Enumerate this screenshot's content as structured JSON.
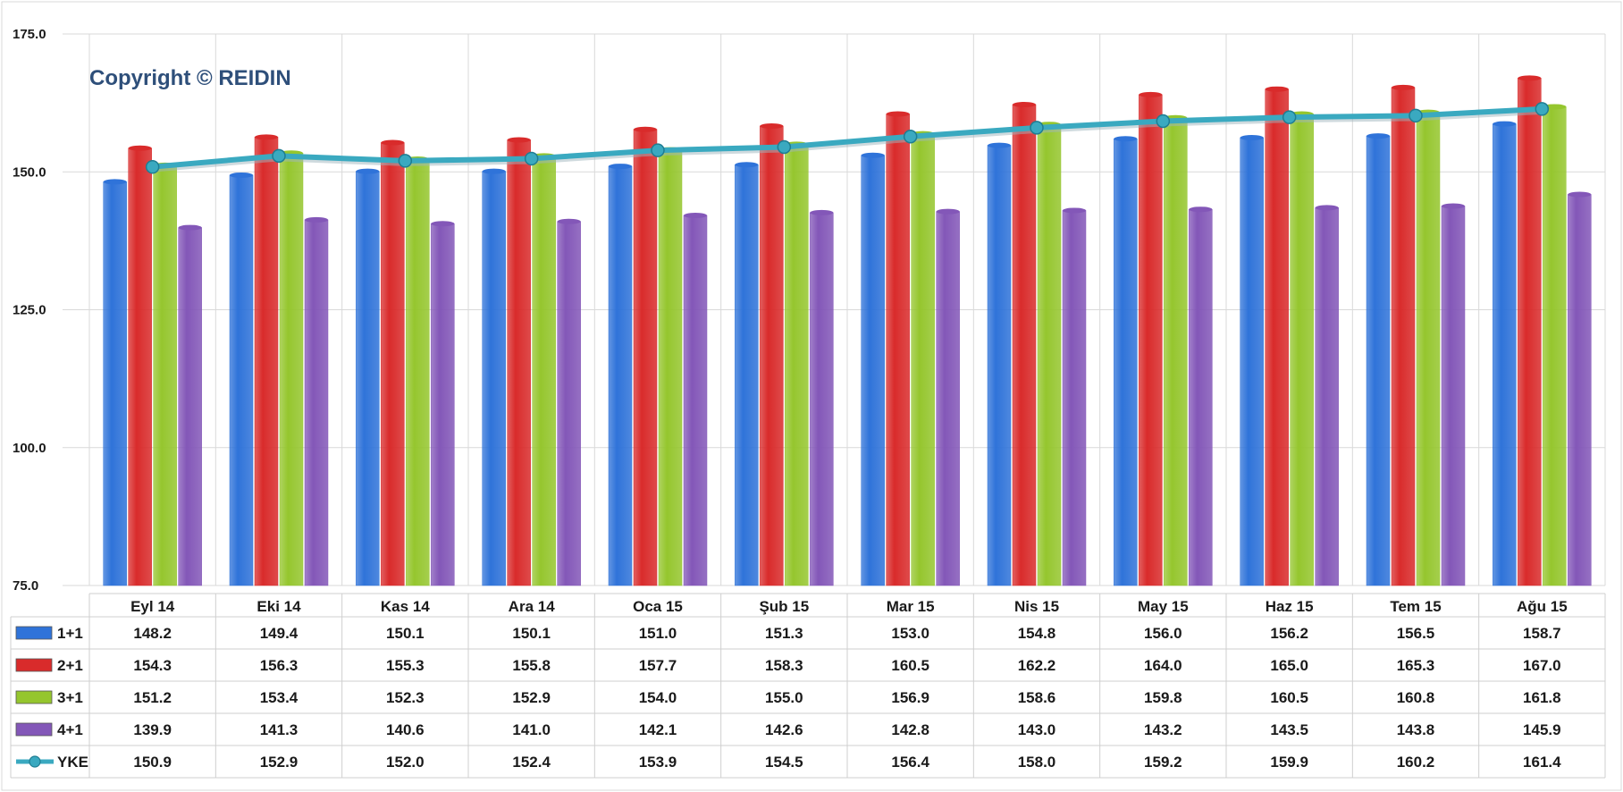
{
  "watermark": "Copyright © REIDIN",
  "chart_data": {
    "type": "bar",
    "title": "",
    "xlabel": "",
    "ylabel": "",
    "ylim": [
      75,
      175
    ],
    "yticks": [
      "175.0",
      "150.0",
      "125.0",
      "100.0",
      "75.0"
    ],
    "ytick_values": [
      175,
      150,
      125,
      100,
      75
    ],
    "grid": true,
    "legend": "data-table",
    "categories": [
      "Eyl 14",
      "Eki 14",
      "Kas 14",
      "Ara 14",
      "Oca 15",
      "Şub 15",
      "Mar 15",
      "Nis 15",
      "May 15",
      "Haz 15",
      "Tem 15",
      "Ağu 15"
    ],
    "series": [
      {
        "name": "1+1",
        "kind": "bar",
        "color": "#2f73d9",
        "values": [
          148.2,
          149.4,
          150.1,
          150.1,
          151.0,
          151.3,
          153.0,
          154.8,
          156.0,
          156.2,
          156.5,
          158.7
        ],
        "labels": [
          "148.2",
          "149.4",
          "150.1",
          "150.1",
          "151.0",
          "151.3",
          "153.0",
          "154.8",
          "156.0",
          "156.2",
          "156.5",
          "158.7"
        ]
      },
      {
        "name": "2+1",
        "kind": "bar",
        "color": "#d92b2b",
        "values": [
          154.3,
          156.3,
          155.3,
          155.8,
          157.7,
          158.3,
          160.5,
          162.2,
          164.0,
          165.0,
          165.3,
          167.0
        ],
        "labels": [
          "154.3",
          "156.3",
          "155.3",
          "155.8",
          "157.7",
          "158.3",
          "160.5",
          "162.2",
          "164.0",
          "165.0",
          "165.3",
          "167.0"
        ]
      },
      {
        "name": "3+1",
        "kind": "bar",
        "color": "#95c62e",
        "values": [
          151.2,
          153.4,
          152.3,
          152.9,
          154.0,
          155.0,
          156.9,
          158.6,
          159.8,
          160.5,
          160.8,
          161.8
        ],
        "labels": [
          "151.2",
          "153.4",
          "152.3",
          "152.9",
          "154.0",
          "155.0",
          "156.9",
          "158.6",
          "159.8",
          "160.5",
          "160.8",
          "161.8"
        ]
      },
      {
        "name": "4+1",
        "kind": "bar",
        "color": "#8357b8",
        "values": [
          139.9,
          141.3,
          140.6,
          141.0,
          142.1,
          142.6,
          142.8,
          143.0,
          143.2,
          143.5,
          143.8,
          145.9
        ],
        "labels": [
          "139.9",
          "141.3",
          "140.6",
          "141.0",
          "142.1",
          "142.6",
          "142.8",
          "143.0",
          "143.2",
          "143.5",
          "143.8",
          "145.9"
        ]
      },
      {
        "name": "YKE",
        "kind": "line",
        "color": "#3aa9c0",
        "values": [
          150.9,
          152.9,
          152.0,
          152.4,
          153.9,
          154.5,
          156.4,
          158.0,
          159.2,
          159.9,
          160.2,
          161.4
        ],
        "labels": [
          "150.9",
          "152.9",
          "152.0",
          "152.4",
          "153.9",
          "154.5",
          "156.4",
          "158.0",
          "159.2",
          "159.9",
          "160.2",
          "161.4"
        ]
      }
    ]
  }
}
